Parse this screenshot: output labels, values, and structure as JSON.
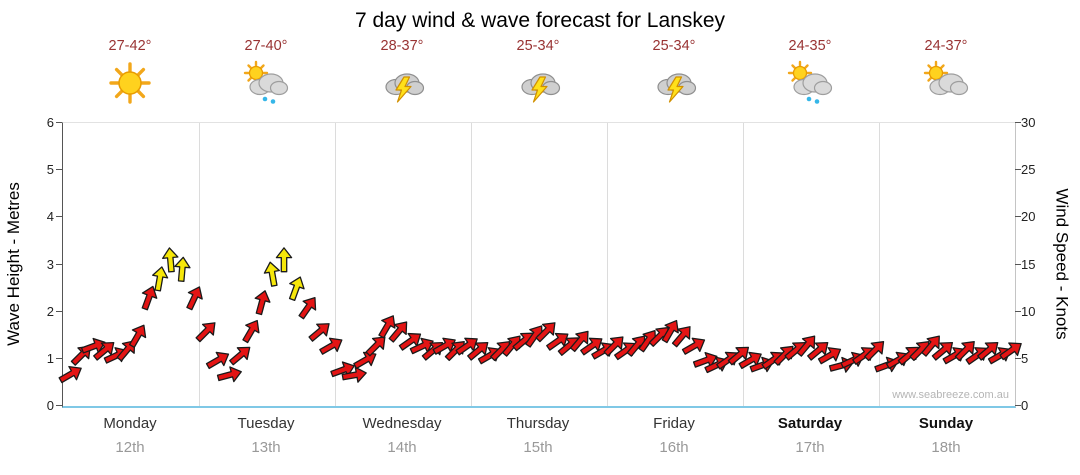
{
  "title": "7 day wind & wave forecast for Lanskey",
  "watermark": "www.seabreeze.com.au",
  "colors": {
    "arrow_red": "#e31414",
    "arrow_yellow": "#f6e70a",
    "arrow_outline": "#1a1a1a",
    "bottom_axis": "#7fc8e6",
    "temp_text": "#993333"
  },
  "axes": {
    "left_label": "Wave Height - Metres",
    "right_label": "Wind Speed - Knots",
    "left_ticks": [
      6,
      5,
      4,
      3,
      2,
      1,
      0
    ],
    "right_ticks": [
      30,
      25,
      20,
      15,
      10,
      5,
      0
    ],
    "wave_ylim": [
      0,
      6
    ],
    "wind_ylim": [
      0,
      30
    ]
  },
  "days": [
    {
      "name": "Monday",
      "date": "12th",
      "temp": "27-42°",
      "icon": "sunny",
      "bold": false
    },
    {
      "name": "Tuesday",
      "date": "13th",
      "temp": "27-40°",
      "icon": "sun-cloud-rain",
      "bold": false
    },
    {
      "name": "Wednesday",
      "date": "14th",
      "temp": "28-37°",
      "icon": "storm",
      "bold": false
    },
    {
      "name": "Thursday",
      "date": "15th",
      "temp": "25-34°",
      "icon": "storm",
      "bold": false
    },
    {
      "name": "Friday",
      "date": "16th",
      "temp": "25-34°",
      "icon": "storm",
      "bold": false
    },
    {
      "name": "Saturday",
      "date": "17th",
      "temp": "24-35°",
      "icon": "sun-cloud-rain",
      "bold": true
    },
    {
      "name": "Sunday",
      "date": "18th",
      "temp": "24-37°",
      "icon": "sun-cloud",
      "bold": true
    }
  ],
  "chart_data": {
    "type": "scatter",
    "description": "Wind arrows plotted every 2 hours over 7 days. Arrow vertical position = wind speed in knots (right axis) which coincides with wave height in metres (left axis, 1 m = 5 kn). Arrows of 12.5 kn or more are yellow, otherwise red. Each point is [hour, knots, direction_deg (0 = up)].",
    "x_unit": "hour of 7-day period (0-166)",
    "yellow_threshold_knots": 12.5,
    "points": [
      [
        0,
        3.5,
        60
      ],
      [
        2,
        5.5,
        45
      ],
      [
        4,
        6.5,
        70
      ],
      [
        6,
        6,
        50
      ],
      [
        8,
        5.5,
        65
      ],
      [
        10,
        6,
        40
      ],
      [
        12,
        7.5,
        30
      ],
      [
        14,
        11.5,
        20
      ],
      [
        16,
        13.5,
        10
      ],
      [
        18,
        15.5,
        -5
      ],
      [
        20,
        14.5,
        5
      ],
      [
        22,
        11.5,
        25
      ],
      [
        24,
        8,
        45
      ],
      [
        26,
        5,
        60
      ],
      [
        28,
        3.5,
        75
      ],
      [
        30,
        5.5,
        50
      ],
      [
        32,
        8,
        30
      ],
      [
        34,
        11,
        15
      ],
      [
        36,
        14,
        -10
      ],
      [
        38,
        15.5,
        0
      ],
      [
        40,
        12.5,
        20
      ],
      [
        42,
        10.5,
        35
      ],
      [
        44,
        8,
        50
      ],
      [
        46,
        6.5,
        60
      ],
      [
        48,
        4,
        70
      ],
      [
        50,
        3.5,
        80
      ],
      [
        52,
        5,
        60
      ],
      [
        54,
        6.5,
        45
      ],
      [
        56,
        8.5,
        30
      ],
      [
        58,
        8,
        40
      ],
      [
        60,
        7,
        55
      ],
      [
        62,
        6.5,
        65
      ],
      [
        64,
        6,
        50
      ],
      [
        66,
        6.5,
        60
      ],
      [
        68,
        6,
        45
      ],
      [
        70,
        6.5,
        55
      ],
      [
        72,
        6,
        50
      ],
      [
        74,
        5.5,
        60
      ],
      [
        76,
        6,
        45
      ],
      [
        78,
        6.5,
        40
      ],
      [
        80,
        7,
        50
      ],
      [
        82,
        7.5,
        35
      ],
      [
        84,
        8,
        45
      ],
      [
        86,
        7,
        55
      ],
      [
        88,
        6.5,
        50
      ],
      [
        90,
        7,
        40
      ],
      [
        92,
        6.5,
        55
      ],
      [
        94,
        6,
        60
      ],
      [
        96,
        6.5,
        45
      ],
      [
        98,
        6,
        55
      ],
      [
        100,
        6.5,
        40
      ],
      [
        102,
        7,
        35
      ],
      [
        104,
        7.5,
        45
      ],
      [
        106,
        8,
        30
      ],
      [
        108,
        7.5,
        40
      ],
      [
        110,
        6.5,
        60
      ],
      [
        112,
        5,
        70
      ],
      [
        114,
        4.5,
        65
      ],
      [
        116,
        5,
        55
      ],
      [
        118,
        5.5,
        50
      ],
      [
        120,
        5,
        60
      ],
      [
        122,
        4.5,
        70
      ],
      [
        124,
        5,
        55
      ],
      [
        126,
        5.5,
        45
      ],
      [
        128,
        6,
        50
      ],
      [
        130,
        6.5,
        40
      ],
      [
        132,
        6,
        50
      ],
      [
        134,
        5.5,
        60
      ],
      [
        136,
        4.5,
        75
      ],
      [
        138,
        5,
        65
      ],
      [
        140,
        5.5,
        55
      ],
      [
        142,
        6,
        45
      ],
      [
        144,
        4.5,
        70
      ],
      [
        146,
        5,
        60
      ],
      [
        148,
        5.5,
        50
      ],
      [
        150,
        6,
        45
      ],
      [
        152,
        6.5,
        40
      ],
      [
        154,
        6,
        50
      ],
      [
        156,
        5.5,
        60
      ],
      [
        158,
        6,
        45
      ],
      [
        160,
        5.5,
        55
      ],
      [
        162,
        6,
        50
      ],
      [
        164,
        5.5,
        60
      ],
      [
        166,
        6,
        55
      ]
    ]
  }
}
